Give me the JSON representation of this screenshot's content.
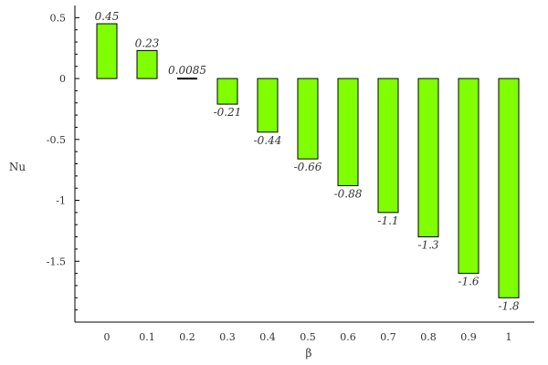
{
  "chart_data": {
    "type": "bar",
    "title": "",
    "xlabel": "β",
    "ylabel": "Nu",
    "categories": [
      "0",
      "0.1",
      "0.2",
      "0.3",
      "0.4",
      "0.5",
      "0.6",
      "0.7",
      "0.8",
      "0.9",
      "1"
    ],
    "values": [
      0.45,
      0.23,
      0.0085,
      -0.21,
      -0.44,
      -0.66,
      -0.88,
      -1.1,
      -1.3,
      -1.6,
      -1.8
    ],
    "value_labels": [
      "0.45",
      "0.23",
      "0.0085",
      "-0.21",
      "-0.44",
      "-0.66",
      "-0.88",
      "-1.1",
      "-1.3",
      "-1.6",
      "-1.8"
    ],
    "ylim": [
      -2.0,
      0.6
    ],
    "yticks": [
      0.5,
      0,
      -0.5,
      -1,
      -1.5
    ],
    "ytick_labels": [
      "0.5",
      "0",
      "-0.5",
      "-1",
      "-1.5"
    ],
    "bar_color": "#7fff00",
    "bar_stroke": "#000000",
    "grid": false,
    "legend": "none"
  }
}
